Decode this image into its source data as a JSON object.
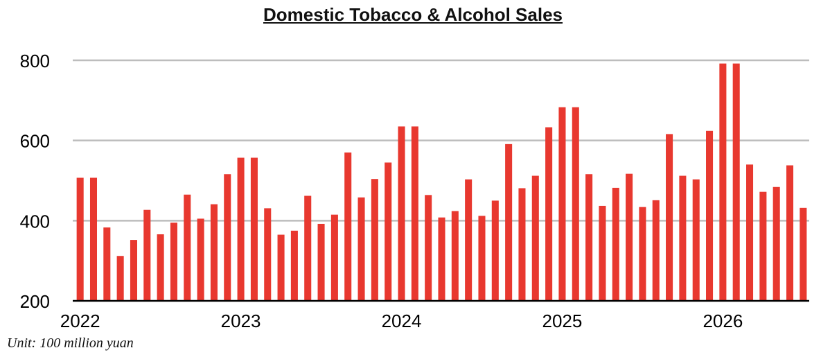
{
  "chart_data": {
    "type": "bar",
    "title": "Domestic Tobacco & Alcohol Sales",
    "note": "Unit: 100 million yuan",
    "xlabel": "",
    "ylabel": "",
    "ylim": [
      200,
      800
    ],
    "yticks": [
      200,
      400,
      600,
      800
    ],
    "year_labels": [
      "2022",
      "2023",
      "2024",
      "2025",
      "2026"
    ],
    "grid": true,
    "bar_color": "#e8382f",
    "categories": [
      "2022-01",
      "2022-02",
      "2022-03",
      "2022-04",
      "2022-05",
      "2022-06",
      "2022-07",
      "2022-08",
      "2022-09",
      "2022-10",
      "2022-11",
      "2022-12",
      "2023-01",
      "2023-02",
      "2023-03",
      "2023-04",
      "2023-05",
      "2023-06",
      "2023-07",
      "2023-08",
      "2023-09",
      "2023-10",
      "2023-11",
      "2023-12",
      "2024-01",
      "2024-02",
      "2024-03",
      "2024-04",
      "2024-05",
      "2024-06",
      "2024-07",
      "2024-08",
      "2024-09",
      "2024-10",
      "2024-11",
      "2024-12",
      "2025-01",
      "2025-02",
      "2025-03",
      "2025-04",
      "2025-05",
      "2025-06",
      "2025-07",
      "2025-08",
      "2025-09",
      "2025-10",
      "2025-11",
      "2025-12",
      "2026-01",
      "2026-02",
      "2026-03",
      "2026-04",
      "2026-05",
      "2026-06",
      "2026-07"
    ],
    "values": [
      507,
      507,
      383,
      312,
      352,
      427,
      366,
      395,
      465,
      405,
      441,
      516,
      557,
      557,
      431,
      365,
      375,
      462,
      392,
      415,
      570,
      458,
      504,
      545,
      635,
      635,
      464,
      408,
      424,
      503,
      412,
      450,
      591,
      481,
      512,
      633,
      683,
      683,
      516,
      437,
      482,
      517,
      434,
      451,
      616,
      512,
      503,
      624,
      792,
      792,
      540,
      472,
      484,
      538,
      432
    ]
  }
}
